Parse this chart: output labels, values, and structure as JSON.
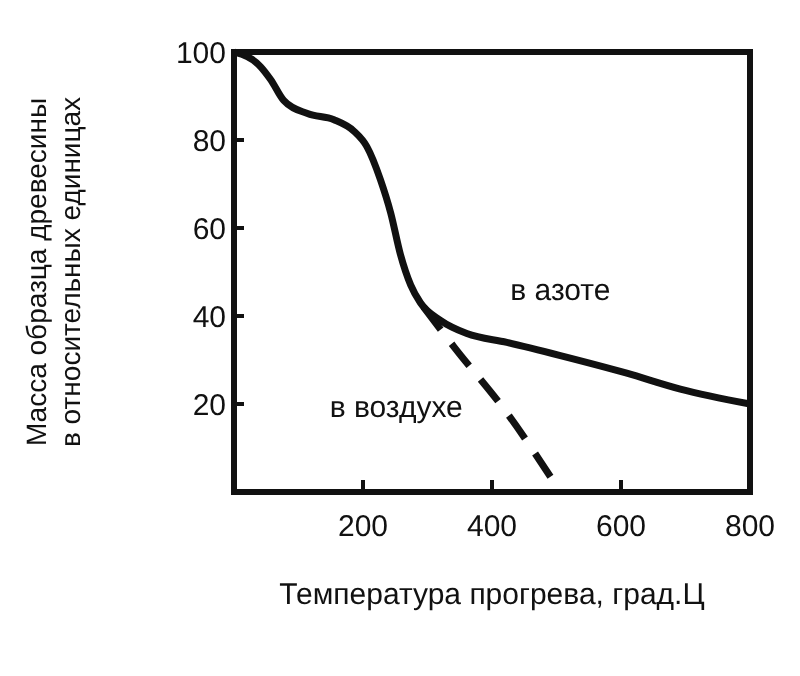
{
  "chart_data": {
    "type": "line",
    "xlabel": "Температура прогрева, град.Ц",
    "ylabel": "Масса образца древесины\nв относительных единицах",
    "xlim": [
      0,
      800
    ],
    "ylim": [
      0,
      100
    ],
    "xticks": [
      200,
      400,
      600,
      800
    ],
    "yticks": [
      {
        "value": 0,
        "label": null
      },
      20,
      40,
      60,
      80,
      100
    ],
    "grid": false,
    "marker": "none",
    "series": [
      {
        "name": "в азоте",
        "color": "#111111",
        "line_style": "solid",
        "x": [
          0,
          41,
          57,
          77,
          114,
          155,
          186,
          206,
          227,
          243,
          258,
          274,
          289,
          320,
          361,
          423,
          506,
          609,
          692,
          800
        ],
        "values": [
          100,
          96.7,
          93.7,
          89,
          86,
          84.6,
          82,
          78.5,
          71,
          63.4,
          54,
          47,
          43,
          39,
          36,
          34,
          31,
          27,
          23.4,
          20
        ]
      },
      {
        "name": "в воздухе",
        "color": "#111111",
        "line_style": "dashed",
        "x": [
          294,
          341,
          423,
          506
        ],
        "values": [
          42,
          33,
          18,
          0
        ]
      }
    ]
  }
}
